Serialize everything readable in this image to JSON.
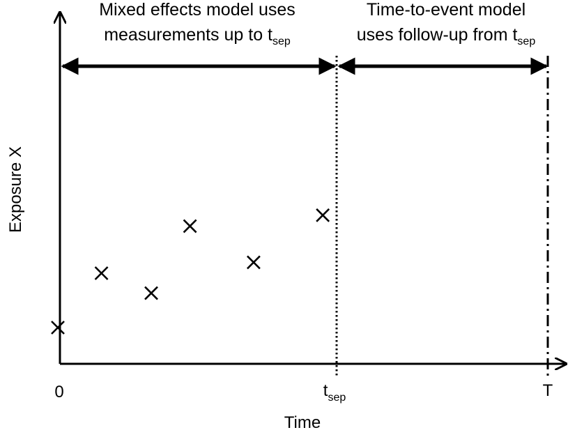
{
  "diagram": {
    "y_axis_label": "Exposure X",
    "x_axis_label": "Time",
    "tick_zero": "0",
    "tick_tsep_base": "t",
    "tick_tsep_sub": "sep",
    "tick_T": "T",
    "left_annotation": {
      "line1": "Mixed effects model uses",
      "line2_base": "measurements up to t",
      "line2_sub": "sep"
    },
    "right_annotation": {
      "line1": "Time-to-event model",
      "line2_base": "uses follow-up from t",
      "line2_sub": "sep"
    },
    "measurements": [
      {
        "time": 0.0,
        "exposure": 1.0
      },
      {
        "time": 0.15,
        "exposure": 2.5
      },
      {
        "time": 0.33,
        "exposure": 1.95
      },
      {
        "time": 0.47,
        "exposure": 3.8
      },
      {
        "time": 0.7,
        "exposure": 2.8
      },
      {
        "time": 0.95,
        "exposure": 4.1
      }
    ],
    "t_sep": 1.0,
    "T": 1.75
  }
}
